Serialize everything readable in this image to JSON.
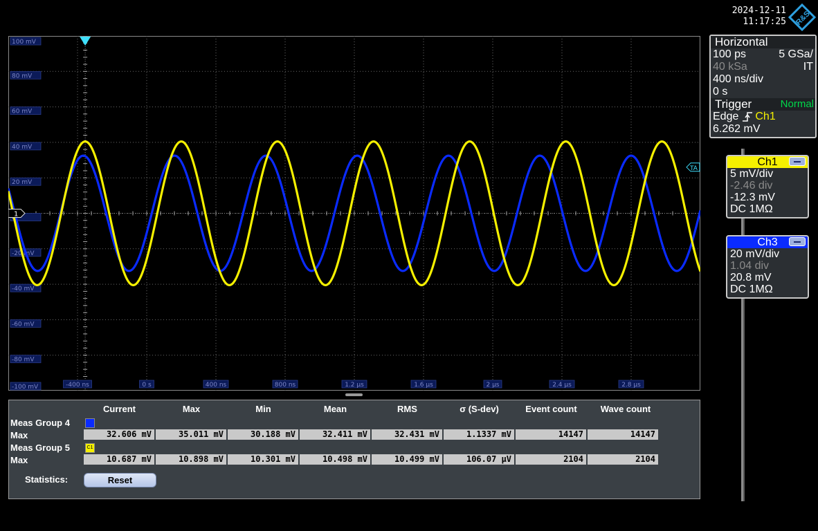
{
  "datetime": {
    "date": "2024-12-11",
    "time": "11:17:25"
  },
  "logo_text": "R&S",
  "scope": {
    "y_labels": [
      "100 mV",
      "80 mV",
      "60 mV",
      "40 mV",
      "20 mV",
      "0",
      "-20 mV",
      "-40 mV",
      "-60 mV",
      "-80 mV",
      "-100 mV"
    ],
    "x_labels": [
      "-400 ns",
      "0 s",
      "400 ns",
      "800 ns",
      "1.2 µs",
      "1.6 µs",
      "2 µs",
      "2.4 µs",
      "2.8 µs"
    ],
    "ch1_marker": "1",
    "trigger_marker": "TA",
    "colors": {
      "ch1": "#f5f000",
      "ch3": "#0a2bff",
      "grid": "#6b6b6b"
    }
  },
  "chart_data": {
    "type": "line",
    "title": "",
    "xlabel": "",
    "ylabel": "",
    "xlim": [
      -0.4,
      3.2
    ],
    "ylim": [
      -100,
      100
    ],
    "x_unit": "µs",
    "y_unit": "mV",
    "series": [
      {
        "name": "Ch1",
        "color": "#f5f000",
        "amplitude_mV": 40.5,
        "offset_mV": 0,
        "period_us": 0.5,
        "peak_at_us": 0.0
      },
      {
        "name": "Ch3",
        "color": "#0a2bff",
        "amplitude_mV": 32.5,
        "offset_mV": 0,
        "period_us": 0.475,
        "peak_at_us": -0.01
      }
    ]
  },
  "horizontal": {
    "title": "Horizontal",
    "resolution": "100 ps",
    "sample_rate": "5 GSa/",
    "record_length": "40 kSa",
    "mode": "IT",
    "timebase": "400 ns/div",
    "position": "0 s"
  },
  "trigger": {
    "title": "Trigger",
    "mode": "Normal",
    "type": "Edge",
    "source": "Ch1",
    "level": "6.262 mV"
  },
  "ch1": {
    "name": "Ch1",
    "scale": "5 mV/div",
    "offset_div": "-2.46 div",
    "offset_mv": "-12.3 mV",
    "coupling": "DC 1MΩ"
  },
  "ch3": {
    "name": "Ch3",
    "scale": "20 mV/div",
    "offset_div": "1.04 div",
    "offset_mv": "20.8 mV",
    "coupling": "DC 1MΩ"
  },
  "measurements": {
    "headers": [
      "Current",
      "Max",
      "Min",
      "Mean",
      "RMS",
      "σ (S-dev)",
      "Event count",
      "Wave count"
    ],
    "groups": [
      {
        "name": "Meas Group 4",
        "source": "C3",
        "row_label": "Max",
        "values": [
          "32.606 mV",
          "35.011 mV",
          "30.188 mV",
          "32.411 mV",
          "32.431 mV",
          "1.1337 mV",
          "14147",
          "14147"
        ]
      },
      {
        "name": "Meas Group 5",
        "source": "C1",
        "row_label": "Max",
        "values": [
          "10.687 mV",
          "10.898 mV",
          "10.301 mV",
          "10.498 mV",
          "10.499 mV",
          "106.07 µV",
          "2104",
          "2104"
        ]
      }
    ],
    "statistics_label": "Statistics:",
    "reset_label": "Reset"
  }
}
